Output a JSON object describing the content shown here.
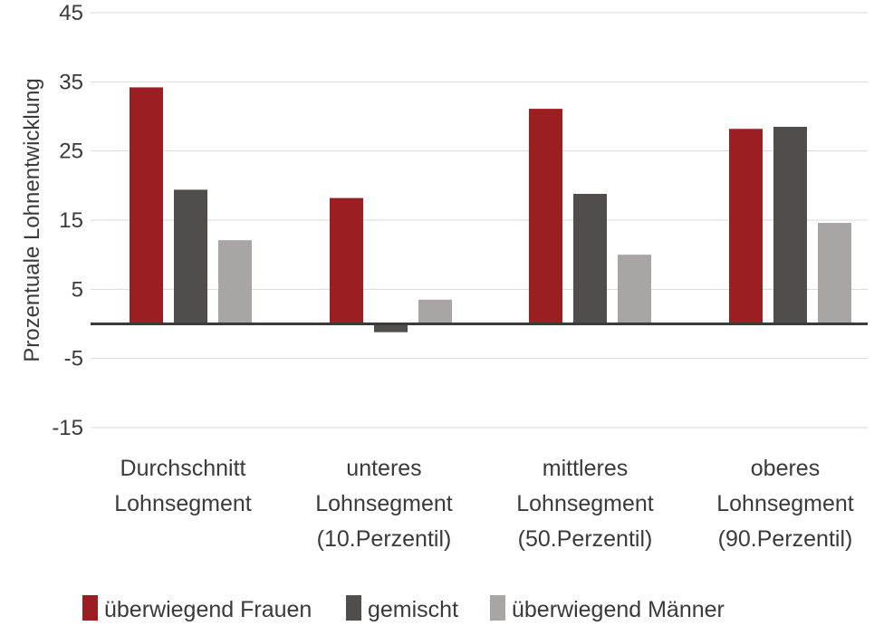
{
  "chart_data": {
    "type": "bar",
    "ylabel": "Prozentuale Lohnentwicklung",
    "ylim": [
      -15,
      45
    ],
    "yticks": [
      45,
      35,
      25,
      15,
      5,
      -5,
      -15
    ],
    "yticklabels": [
      "45",
      "35",
      "25",
      "15",
      "5",
      "-5",
      "-15"
    ],
    "grid": true,
    "legend_position": "bottom",
    "categories": [
      [
        "Durchschnitt",
        "Lohnsegment"
      ],
      [
        "unteres",
        "Lohnsegment",
        "(10.Perzentil)"
      ],
      [
        "mittleres",
        "Lohnsegment",
        "(50.Perzentil)"
      ],
      [
        "oberes",
        "Lohnsegment",
        "(90.Perzentil)"
      ]
    ],
    "series": [
      {
        "name": "überwiegend Frauen",
        "color": "#9b1f22",
        "values": [
          34.2,
          18.2,
          31.1,
          28.2
        ]
      },
      {
        "name": "gemischt",
        "color": "#504d4a",
        "values": [
          19.4,
          -1.2,
          18.8,
          28.5
        ]
      },
      {
        "name": "überwiegend Männer",
        "color": "#a8a5a4",
        "values": [
          12.1,
          3.5,
          10.0,
          14.6
        ]
      }
    ]
  }
}
